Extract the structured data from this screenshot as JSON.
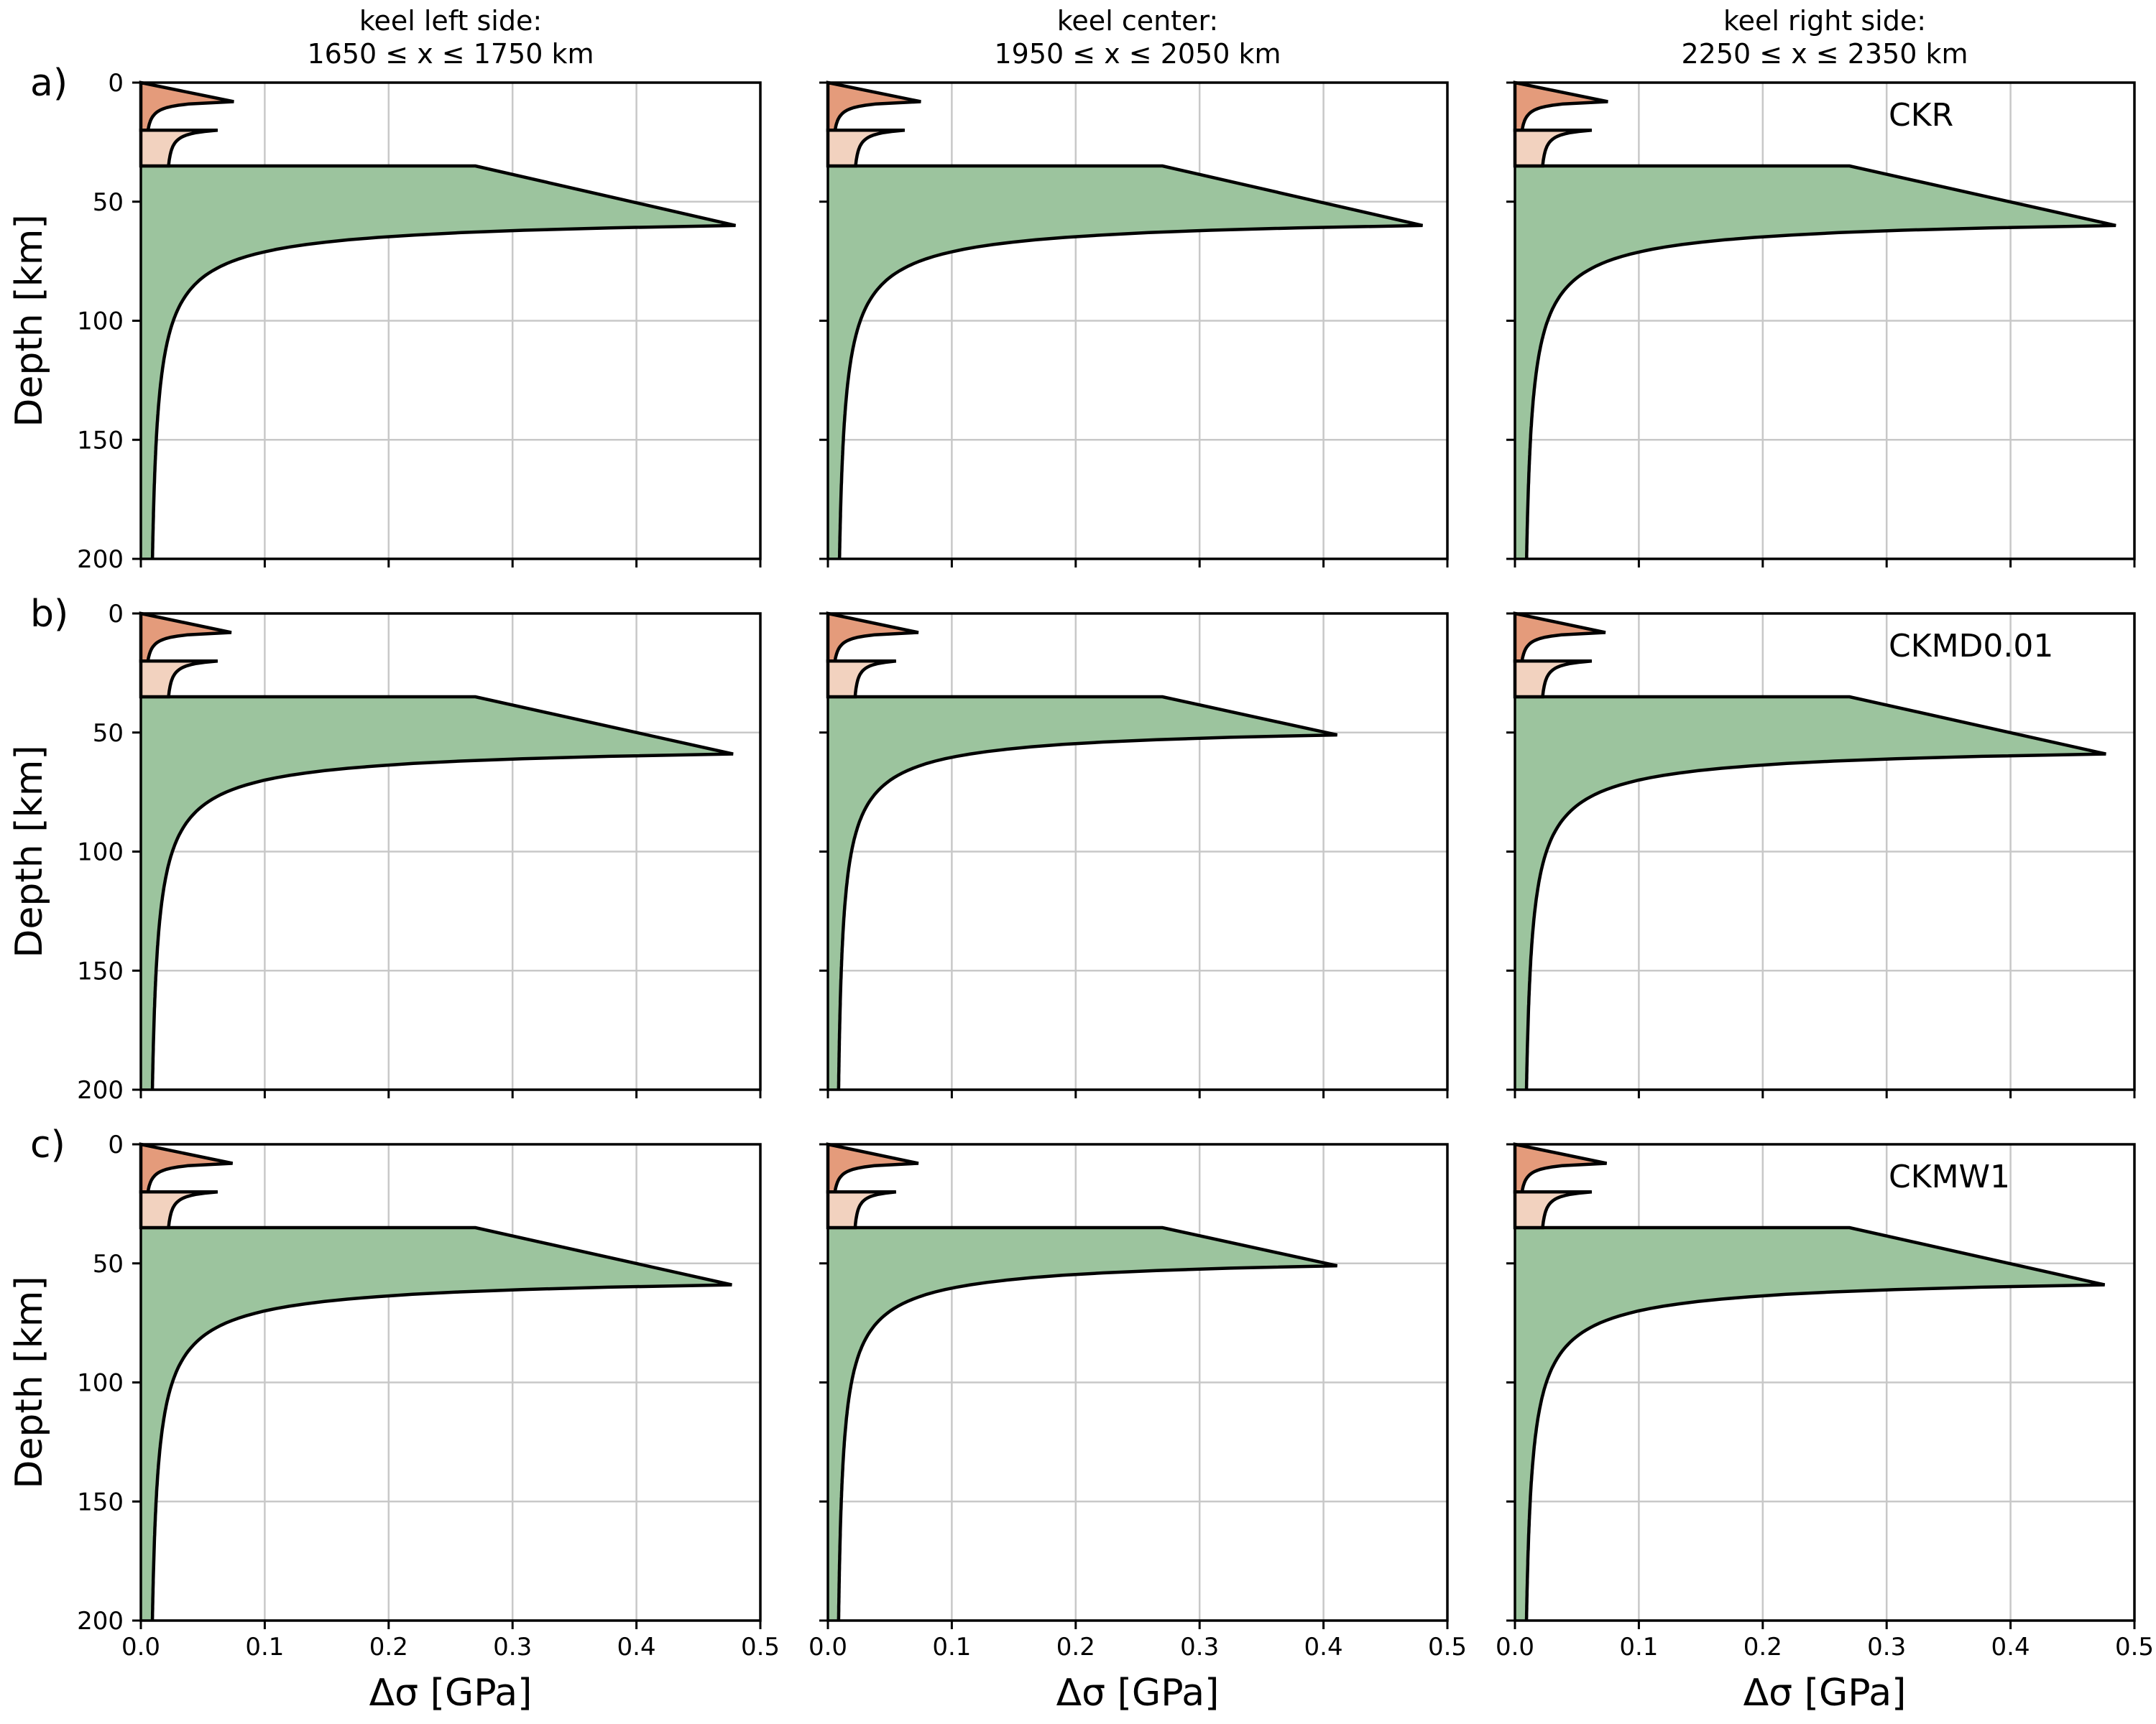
{
  "chart_data": {
    "type": "area",
    "xlabel": "Δσ [GPa]",
    "ylabel": "Depth [km]",
    "xlim": [
      0.0,
      0.5
    ],
    "ylim": [
      200,
      0
    ],
    "xticks": [
      "0.0",
      "0.1",
      "0.2",
      "0.3",
      "0.4",
      "0.5"
    ],
    "yticks": [
      "0",
      "50",
      "100",
      "150",
      "200"
    ],
    "grid": true,
    "layer_colors": {
      "upper_crust": "#e49b7b",
      "lower_crust": "#f2d2bf",
      "mantle": "#9cc49e",
      "outline": "#000000"
    },
    "columns": [
      {
        "title_line1": "keel left side:",
        "title_line2": "1650 ≤ x ≤ 1750 km"
      },
      {
        "title_line1": "keel center:",
        "title_line2": "1950 ≤ x ≤ 2050 km"
      },
      {
        "title_line1": "keel right side:",
        "title_line2": "2250 ≤ x ≤ 2350 km"
      }
    ],
    "rows": [
      {
        "label": "a)",
        "model": "CKR",
        "peaks": [
          {
            "mantle_peak": 0.48,
            "peak_depth": 60,
            "upper_peak": 0.075,
            "lower_peak": 0.062
          },
          {
            "mantle_peak": 0.48,
            "peak_depth": 60,
            "upper_peak": 0.075,
            "lower_peak": 0.062
          },
          {
            "mantle_peak": 0.485,
            "peak_depth": 60,
            "upper_peak": 0.075,
            "lower_peak": 0.062
          }
        ]
      },
      {
        "label": "b)",
        "model": "CKMD0.01",
        "peaks": [
          {
            "mantle_peak": 0.478,
            "peak_depth": 59,
            "upper_peak": 0.073,
            "lower_peak": 0.062
          },
          {
            "mantle_peak": 0.411,
            "peak_depth": 51,
            "upper_peak": 0.073,
            "lower_peak": 0.055
          },
          {
            "mantle_peak": 0.477,
            "peak_depth": 59,
            "upper_peak": 0.073,
            "lower_peak": 0.062
          }
        ]
      },
      {
        "label": "c)",
        "model": "CKMW1",
        "peaks": [
          {
            "mantle_peak": 0.477,
            "peak_depth": 59,
            "upper_peak": 0.074,
            "lower_peak": 0.062
          },
          {
            "mantle_peak": 0.411,
            "peak_depth": 51,
            "upper_peak": 0.073,
            "lower_peak": 0.055
          },
          {
            "mantle_peak": 0.476,
            "peak_depth": 59,
            "upper_peak": 0.074,
            "lower_peak": 0.062
          }
        ]
      }
    ],
    "profile_shape": {
      "upper_crust_depth": [
        0,
        20
      ],
      "lower_crust_depth": [
        20,
        35
      ],
      "mantle_depth": [
        35,
        200
      ],
      "mantle_value_at_moho": 0.27,
      "surface_value_upper": 0.0,
      "surface_value_lower": 0.02
    }
  }
}
